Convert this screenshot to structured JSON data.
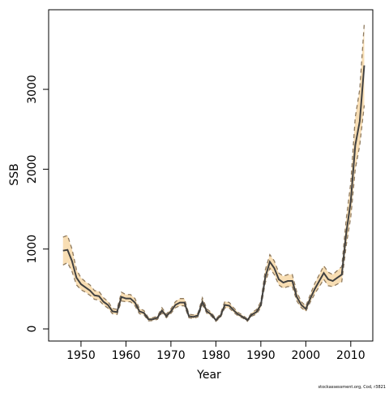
{
  "chart_data": {
    "type": "line",
    "xlabel": "Year",
    "ylabel": "SSB",
    "footnote": "stockassessment.org, Cod, r3821",
    "x": [
      1946,
      1947,
      1948,
      1949,
      1950,
      1951,
      1952,
      1953,
      1954,
      1955,
      1956,
      1957,
      1958,
      1959,
      1960,
      1961,
      1962,
      1963,
      1964,
      1965,
      1966,
      1967,
      1968,
      1969,
      1970,
      1971,
      1972,
      1973,
      1974,
      1975,
      1976,
      1977,
      1978,
      1979,
      1980,
      1981,
      1982,
      1983,
      1984,
      1985,
      1986,
      1987,
      1988,
      1989,
      1990,
      1991,
      1992,
      1993,
      1994,
      1995,
      1996,
      1997,
      1998,
      1999,
      2000,
      2001,
      2002,
      2003,
      2004,
      2005,
      2006,
      2007,
      2008,
      2009,
      2010,
      2011,
      2012,
      2013
    ],
    "series": [
      {
        "color": "#404040",
        "values": [
          980,
          990,
          850,
          640,
          560,
          520,
          480,
          420,
          410,
          340,
          300,
          220,
          210,
          400,
          380,
          380,
          330,
          220,
          200,
          120,
          120,
          140,
          230,
          160,
          220,
          300,
          330,
          330,
          160,
          150,
          170,
          340,
          220,
          180,
          110,
          160,
          300,
          290,
          230,
          180,
          150,
          110,
          180,
          210,
          300,
          650,
          840,
          760,
          620,
          580,
          600,
          600,
          400,
          300,
          250,
          380,
          500,
          600,
          700,
          620,
          600,
          640,
          680,
          1200,
          1600,
          2300,
          2600,
          3300
        ]
      }
    ],
    "band": {
      "fill": "#f8deb4",
      "line_color": "#8f7a5e",
      "lower": [
        800,
        830,
        720,
        550,
        490,
        460,
        420,
        370,
        360,
        300,
        260,
        190,
        180,
        350,
        340,
        340,
        290,
        190,
        175,
        100,
        105,
        120,
        200,
        140,
        195,
        265,
        290,
        290,
        140,
        130,
        150,
        300,
        195,
        160,
        95,
        140,
        265,
        260,
        205,
        160,
        135,
        95,
        160,
        185,
        265,
        580,
        760,
        680,
        550,
        510,
        530,
        530,
        350,
        265,
        220,
        335,
        440,
        530,
        620,
        540,
        530,
        560,
        590,
        1050,
        1400,
        2000,
        2300,
        2800
      ],
      "upper": [
        1150,
        1170,
        1000,
        740,
        640,
        590,
        550,
        480,
        470,
        390,
        345,
        255,
        245,
        460,
        430,
        430,
        380,
        255,
        230,
        140,
        140,
        160,
        265,
        185,
        250,
        340,
        380,
        380,
        185,
        175,
        195,
        390,
        250,
        205,
        125,
        185,
        345,
        330,
        260,
        205,
        170,
        125,
        205,
        240,
        340,
        740,
        930,
        850,
        700,
        660,
        680,
        680,
        460,
        340,
        285,
        430,
        570,
        680,
        790,
        710,
        680,
        730,
        780,
        1380,
        1830,
        2650,
        3000,
        3820
      ]
    },
    "xlim": [
      1942.8,
      2014.9
    ],
    "ylim": [
      -152,
      3997
    ],
    "xticks": [
      1950,
      1960,
      1970,
      1980,
      1990,
      2000,
      2010
    ],
    "yticks": [
      0,
      1000,
      2000,
      3000
    ]
  }
}
